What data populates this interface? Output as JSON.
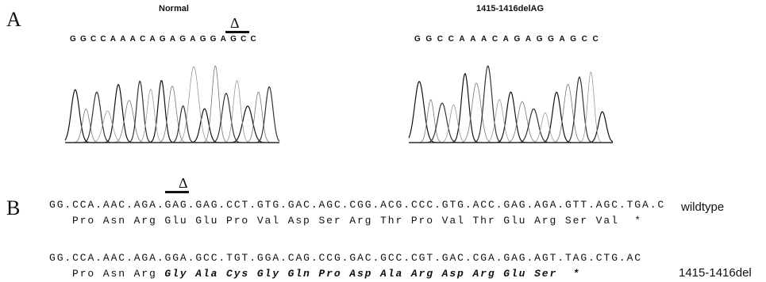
{
  "panel_a": {
    "label": "A",
    "left": {
      "title": "Normal",
      "delta": "Δ",
      "sequence": "GGCCAAACAGAGAGGAGCC"
    },
    "right": {
      "title": "1415-1416delAG",
      "sequence": "GGCCAAACAGAGGAGCC"
    }
  },
  "panel_b": {
    "label": "B",
    "delta": "Δ",
    "wildtype": {
      "dna": "GG.CCA.AAC.AGA.GAG.GAG.CCT.GTG.GAC.AGC.CGG.ACG.CCC.GTG.ACC.GAG.AGA.GTT.AGC.TGA.C",
      "protein": "Pro Asn Arg Glu Glu Pro Val Asp Ser Arg Thr Pro Val Thr Glu Arg Ser Val  *",
      "label": "wildtype"
    },
    "mutant": {
      "dna": "GG.CCA.AAC.AGA.GGA.GCC.TGT.GGA.CAG.CCG.GAC.GCC.CGT.GAC.CGA.GAG.AGT.TAG.CTG.AC",
      "protein_unchanged": "Pro Asn Arg",
      "protein_changed": "Gly Ala Cys Gly Gln Pro Asp Ala Arg Asp Arg Glu Ser  *",
      "label": "1415-1416del"
    }
  }
}
